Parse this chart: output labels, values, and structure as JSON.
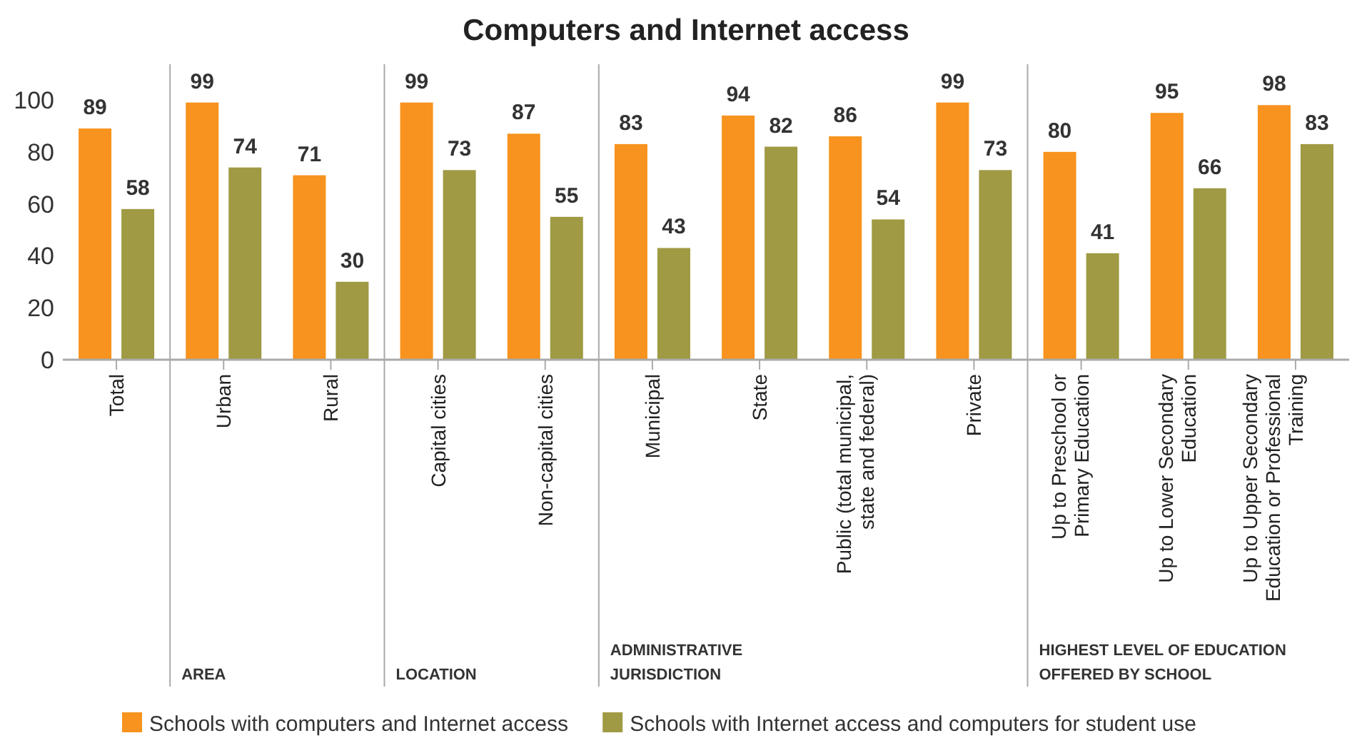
{
  "chart_data": {
    "type": "bar",
    "title": "Computers and Internet access",
    "categories": [
      "Total",
      "Urban",
      "Rural",
      "Capital cities",
      "Non-capital cities",
      "Municipal",
      "State",
      "Public (total municipal, state and federal)",
      "Private",
      "Up to Preschool or Primary Education",
      "Up to Lower Secondary Education",
      "Up to Upper Secondary Education or Professional Training"
    ],
    "series": [
      {
        "name": "Schools with computers and Internet access",
        "color": "#f7931e",
        "values": [
          89,
          99,
          71,
          99,
          87,
          83,
          94,
          86,
          99,
          80,
          95,
          98
        ]
      },
      {
        "name": "Schools with Internet access and computers for student use",
        "color": "#9f9a43",
        "values": [
          58,
          74,
          30,
          73,
          55,
          43,
          82,
          54,
          73,
          41,
          66,
          83
        ]
      }
    ],
    "ylim": [
      0,
      100
    ],
    "yticks": [
      0,
      20,
      40,
      60,
      80,
      100
    ],
    "grid": false,
    "data_labels": true,
    "legend": "bottom",
    "annotations": [
      "AREA",
      "LOCATION",
      "ADMINISTRATIVE JURISDICTION",
      "HIGHEST LEVEL OF EDUCATION OFFERED BY SCHOOL"
    ]
  }
}
